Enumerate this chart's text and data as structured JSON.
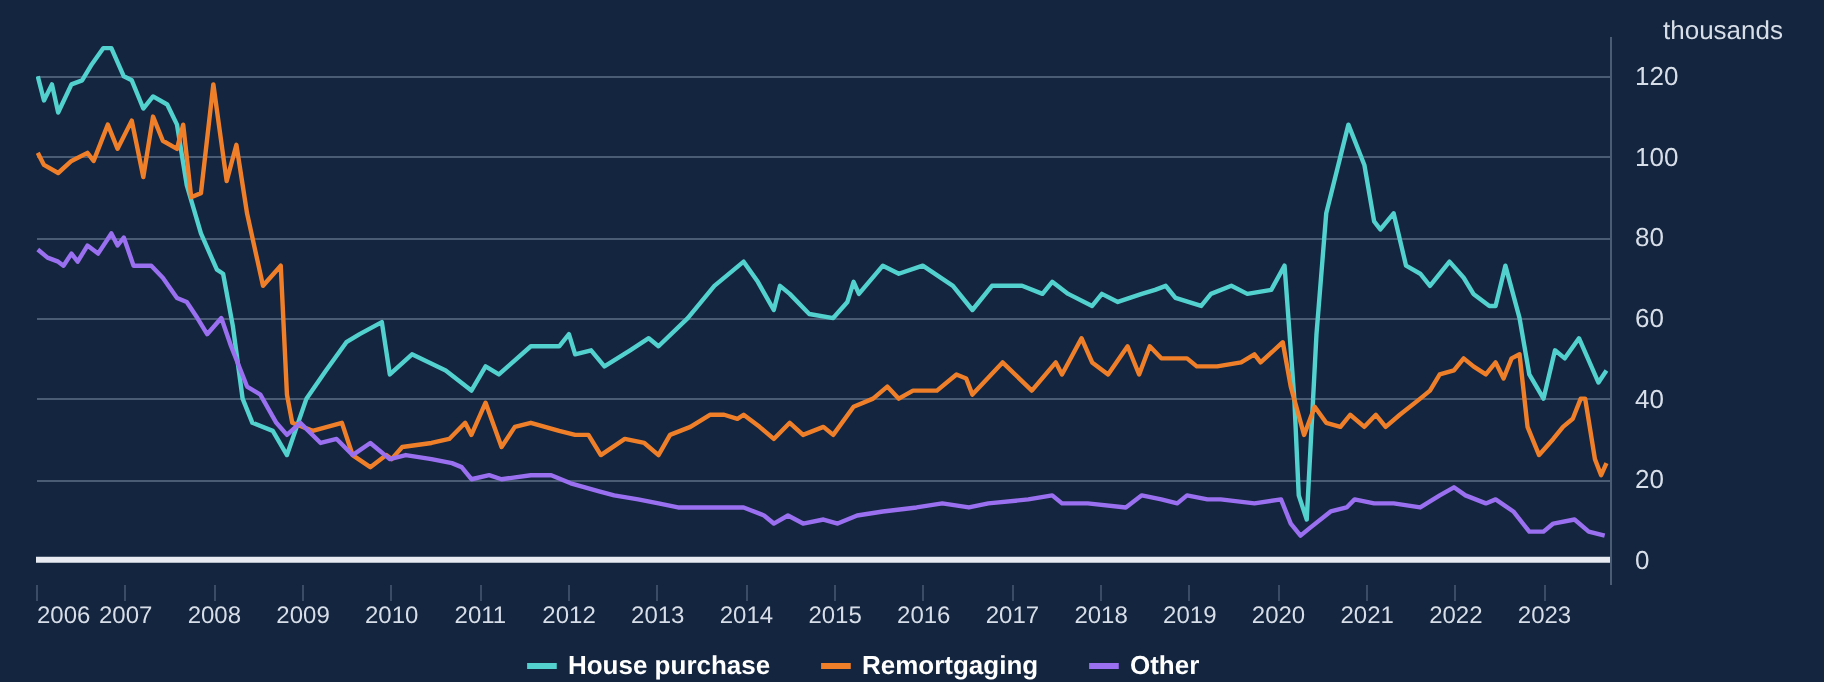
{
  "chart_data": {
    "type": "line",
    "ylabel": "thousands",
    "xlim": [
      2006,
      2023.75
    ],
    "xticks": [
      2006,
      2007,
      2008,
      2009,
      2010,
      2011,
      2012,
      2013,
      2014,
      2015,
      2016,
      2017,
      2018,
      2019,
      2020,
      2021,
      2022,
      2023
    ],
    "ylim": [
      -6,
      130
    ],
    "yticks": [
      0,
      20,
      40,
      60,
      80,
      100,
      120
    ],
    "grid": "y",
    "legend": "bottom",
    "ref_lines": [
      {
        "axis": "y",
        "value": 0,
        "color": "#e8ecf2"
      }
    ],
    "series": [
      {
        "name": "House purchase",
        "color": "#52d1cf",
        "x": [
          2006.02,
          2006.09,
          2006.18,
          2006.25,
          2006.4,
          2006.52,
          2006.63,
          2006.76,
          2006.85,
          2006.99,
          2007.08,
          2007.21,
          2007.32,
          2007.48,
          2007.59,
          2007.7,
          2007.86,
          2008.04,
          2008.11,
          2008.22,
          2008.33,
          2008.44,
          2008.67,
          2008.83,
          2009.05,
          2009.27,
          2009.5,
          2009.65,
          2009.9,
          2009.99,
          2010.24,
          2010.62,
          2010.91,
          2011.07,
          2011.22,
          2011.58,
          2011.9,
          2012.01,
          2012.08,
          2012.26,
          2012.41,
          2012.7,
          2012.91,
          2013.02,
          2013.35,
          2013.65,
          2013.98,
          2014.14,
          2014.32,
          2014.39,
          2014.5,
          2014.72,
          2014.99,
          2015.15,
          2015.22,
          2015.28,
          2015.55,
          2015.73,
          2016.0,
          2016.34,
          2016.56,
          2016.78,
          2017.12,
          2017.35,
          2017.46,
          2017.64,
          2017.91,
          2018.02,
          2018.2,
          2018.47,
          2018.62,
          2018.74,
          2018.85,
          2019.14,
          2019.25,
          2019.48,
          2019.66,
          2019.93,
          2020.08,
          2020.19,
          2020.24,
          2020.33,
          2020.44,
          2020.55,
          2020.8,
          2020.98,
          2021.09,
          2021.16,
          2021.31,
          2021.45,
          2021.61,
          2021.72,
          2021.94,
          2022.1,
          2022.21,
          2022.39,
          2022.46,
          2022.57,
          2022.73,
          2022.84,
          2023.0,
          2023.13,
          2023.24,
          2023.4,
          2023.62,
          2023.71
        ],
        "values": [
          120,
          114,
          118,
          111,
          118,
          119,
          123,
          127,
          127,
          120,
          119,
          112,
          115,
          113,
          108,
          93,
          81,
          72,
          71,
          58,
          40,
          34,
          32,
          26,
          40,
          47,
          54,
          56,
          59,
          46,
          51,
          47,
          42,
          48,
          46,
          53,
          53,
          56,
          51,
          52,
          48,
          52,
          55,
          53,
          60,
          68,
          74,
          69,
          62,
          68,
          66,
          61,
          60,
          64,
          69,
          66,
          73,
          71,
          73,
          68,
          62,
          68,
          68,
          66,
          69,
          66,
          63,
          66,
          64,
          66,
          67,
          68,
          65,
          63,
          66,
          68,
          66,
          67,
          73,
          40,
          16,
          10,
          56,
          86,
          108,
          98,
          84,
          82,
          86,
          73,
          71,
          68,
          74,
          70,
          66,
          63,
          63,
          73,
          60,
          46,
          40,
          52,
          50,
          55,
          44,
          47
        ]
      },
      {
        "name": "Remortgaging",
        "color": "#f07f2a",
        "x": [
          2006.02,
          2006.09,
          2006.25,
          2006.4,
          2006.58,
          2006.65,
          2006.81,
          2006.92,
          2007.08,
          2007.21,
          2007.32,
          2007.43,
          2007.59,
          2007.66,
          2007.75,
          2007.86,
          2008.0,
          2008.15,
          2008.26,
          2008.38,
          2008.56,
          2008.76,
          2008.83,
          2008.89,
          2009.12,
          2009.45,
          2009.57,
          2009.77,
          2009.95,
          2010.01,
          2010.13,
          2010.46,
          2010.66,
          2010.84,
          2010.91,
          2011.07,
          2011.25,
          2011.4,
          2011.58,
          2011.9,
          2012.08,
          2012.23,
          2012.37,
          2012.64,
          2012.86,
          2013.02,
          2013.15,
          2013.38,
          2013.6,
          2013.76,
          2013.91,
          2013.98,
          2014.16,
          2014.32,
          2014.5,
          2014.65,
          2014.88,
          2014.99,
          2015.22,
          2015.44,
          2015.6,
          2015.73,
          2015.89,
          2016.16,
          2016.38,
          2016.49,
          2016.56,
          2016.9,
          2017.23,
          2017.5,
          2017.57,
          2017.79,
          2017.91,
          2018.09,
          2018.31,
          2018.44,
          2018.56,
          2018.69,
          2018.98,
          2019.09,
          2019.32,
          2019.59,
          2019.74,
          2019.81,
          2020.06,
          2020.15,
          2020.3,
          2020.42,
          2020.55,
          2020.71,
          2020.82,
          2020.98,
          2021.11,
          2021.22,
          2021.38,
          2021.61,
          2021.72,
          2021.83,
          2021.99,
          2022.1,
          2022.21,
          2022.35,
          2022.46,
          2022.55,
          2022.64,
          2022.73,
          2022.82,
          2022.95,
          2023.11,
          2023.22,
          2023.33,
          2023.42,
          2023.47,
          2023.58,
          2023.65,
          2023.71
        ],
        "values": [
          101,
          98,
          96,
          99,
          101,
          99,
          108,
          102,
          109,
          95,
          110,
          104,
          102,
          108,
          90,
          91,
          118,
          94,
          103,
          86,
          68,
          73,
          41,
          34,
          32,
          34,
          26,
          23,
          26,
          25,
          28,
          29,
          30,
          34,
          31,
          39,
          28,
          33,
          34,
          32,
          31,
          31,
          26,
          30,
          29,
          26,
          31,
          33,
          36,
          36,
          35,
          36,
          33,
          30,
          34,
          31,
          33,
          31,
          38,
          40,
          43,
          40,
          42,
          42,
          46,
          45,
          41,
          49,
          42,
          49,
          46,
          55,
          49,
          46,
          53,
          46,
          53,
          50,
          50,
          48,
          48,
          49,
          51,
          49,
          54,
          43,
          31,
          38,
          34,
          33,
          36,
          33,
          36,
          33,
          36,
          40,
          42,
          46,
          47,
          50,
          48,
          46,
          49,
          45,
          50,
          51,
          33,
          26,
          30,
          33,
          35,
          40,
          40,
          25,
          21,
          24
        ]
      },
      {
        "name": "Other",
        "color": "#9a6ff0",
        "x": [
          2006.02,
          2006.13,
          2006.25,
          2006.31,
          2006.4,
          2006.47,
          2006.58,
          2006.7,
          2006.85,
          2006.92,
          2006.99,
          2007.1,
          2007.3,
          2007.43,
          2007.59,
          2007.7,
          2007.82,
          2007.93,
          2008.09,
          2008.2,
          2008.38,
          2008.53,
          2008.71,
          2008.83,
          2008.98,
          2009.21,
          2009.39,
          2009.57,
          2009.77,
          2009.99,
          2010.17,
          2010.46,
          2010.69,
          2010.8,
          2010.91,
          2011.11,
          2011.25,
          2011.58,
          2011.81,
          2012.03,
          2012.35,
          2012.52,
          2012.79,
          2013.02,
          2013.24,
          2013.53,
          2013.98,
          2014.21,
          2014.32,
          2014.48,
          2014.65,
          2014.88,
          2015.04,
          2015.26,
          2015.55,
          2015.93,
          2016.22,
          2016.52,
          2016.74,
          2017.19,
          2017.46,
          2017.57,
          2017.86,
          2018.29,
          2018.47,
          2018.69,
          2018.87,
          2018.98,
          2019.21,
          2019.36,
          2019.74,
          2020.04,
          2020.15,
          2020.26,
          2020.37,
          2020.6,
          2020.78,
          2020.87,
          2021.09,
          2021.31,
          2021.61,
          2021.83,
          2021.99,
          2022.12,
          2022.35,
          2022.46,
          2022.66,
          2022.84,
          2023.0,
          2023.11,
          2023.35,
          2023.51,
          2023.69
        ],
        "values": [
          77,
          75,
          74,
          73,
          76,
          74,
          78,
          76,
          81,
          78,
          80,
          73,
          73,
          70,
          65,
          64,
          60,
          56,
          60,
          53,
          43,
          41,
          34,
          31,
          34,
          29,
          30,
          26,
          29,
          25,
          26,
          25,
          24,
          23,
          20,
          21,
          20,
          21,
          21,
          19,
          17,
          16,
          15,
          14,
          13,
          13,
          13,
          11,
          9,
          11,
          9,
          10,
          9,
          11,
          12,
          13,
          14,
          13,
          14,
          15,
          16,
          14,
          14,
          13,
          16,
          15,
          14,
          16,
          15,
          15,
          14,
          15,
          9,
          6,
          8,
          12,
          13,
          15,
          14,
          14,
          13,
          16,
          18,
          16,
          14,
          15,
          12,
          7,
          7,
          9,
          10,
          7,
          6
        ]
      }
    ]
  }
}
